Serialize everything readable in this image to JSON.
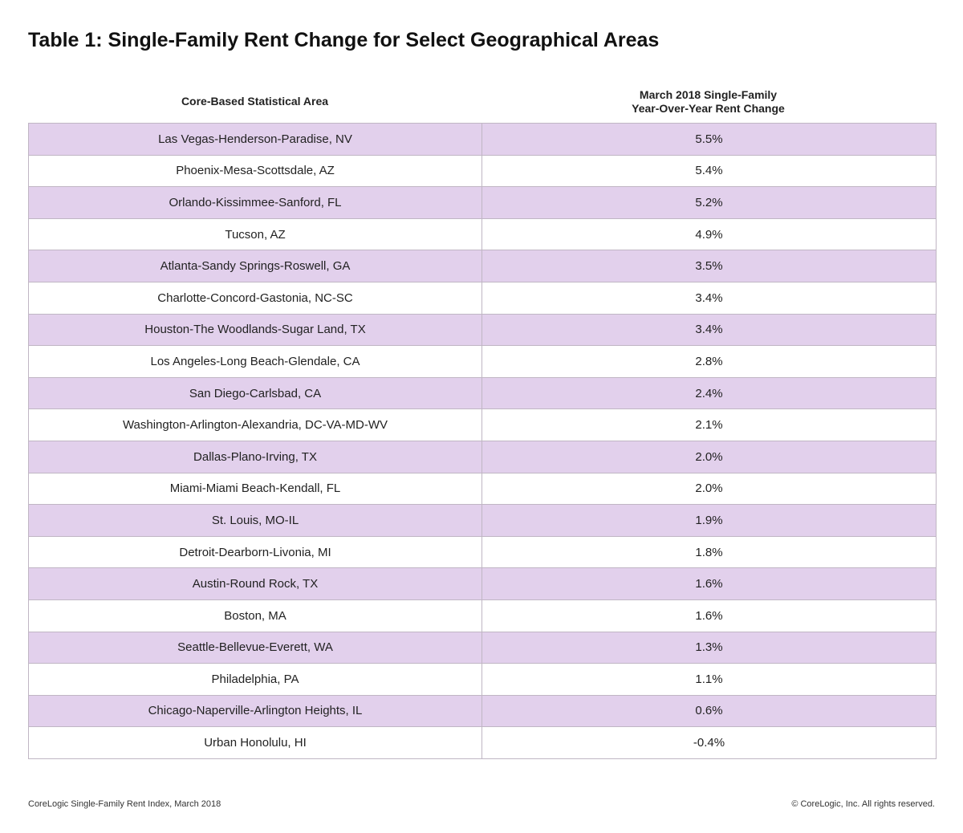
{
  "title": "Table 1: Single-Family Rent Change for Select Geographical Areas",
  "columns": {
    "area": "Core-Based Statistical Area",
    "change_line1": "March 2018 Single-Family",
    "change_line2": "Year-Over-Year Rent Change"
  },
  "colors": {
    "shaded_row": "#e2d0ec",
    "border": "#c0b6c4"
  },
  "rows": [
    {
      "area": "Las Vegas-Henderson-Paradise, NV",
      "change": "5.5%"
    },
    {
      "area": "Phoenix-Mesa-Scottsdale, AZ",
      "change": "5.4%"
    },
    {
      "area": "Orlando-Kissimmee-Sanford, FL",
      "change": "5.2%"
    },
    {
      "area": "Tucson, AZ",
      "change": "4.9%"
    },
    {
      "area": "Atlanta-Sandy Springs-Roswell, GA",
      "change": "3.5%"
    },
    {
      "area": "Charlotte-Concord-Gastonia, NC-SC",
      "change": "3.4%"
    },
    {
      "area": "Houston-The Woodlands-Sugar Land, TX",
      "change": "3.4%"
    },
    {
      "area": "Los Angeles-Long Beach-Glendale, CA",
      "change": "2.8%"
    },
    {
      "area": "San Diego-Carlsbad, CA",
      "change": "2.4%"
    },
    {
      "area": "Washington-Arlington-Alexandria, DC-VA-MD-WV",
      "change": "2.1%"
    },
    {
      "area": "Dallas-Plano-Irving, TX",
      "change": "2.0%"
    },
    {
      "area": "Miami-Miami Beach-Kendall, FL",
      "change": "2.0%"
    },
    {
      "area": "St. Louis, MO-IL",
      "change": "1.9%"
    },
    {
      "area": "Detroit-Dearborn-Livonia, MI",
      "change": "1.8%"
    },
    {
      "area": "Austin-Round Rock, TX",
      "change": "1.6%"
    },
    {
      "area": "Boston, MA",
      "change": "1.6%"
    },
    {
      "area": "Seattle-Bellevue-Everett, WA",
      "change": "1.3%"
    },
    {
      "area": "Philadelphia, PA",
      "change": "1.1%"
    },
    {
      "area": "Chicago-Naperville-Arlington Heights, IL",
      "change": "0.6%"
    },
    {
      "area": "Urban Honolulu, HI",
      "change": "-0.4%"
    }
  ],
  "footer": {
    "source": "CoreLogic Single-Family Rent Index, March 2018",
    "copyright": "© CoreLogic, Inc. All rights reserved."
  }
}
